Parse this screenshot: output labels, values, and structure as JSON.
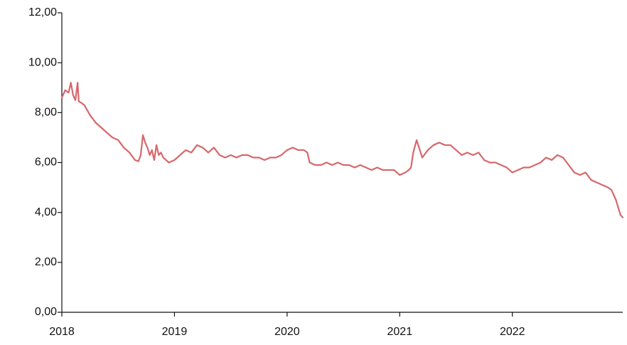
{
  "colors": {
    "series": "#d7676b",
    "axis": "#111111"
  },
  "chart_data": {
    "type": "line",
    "title": "",
    "xlabel": "",
    "ylabel": "",
    "xlim": [
      2018.0,
      2022.98
    ],
    "ylim": [
      0,
      12
    ],
    "grid": false,
    "x_ticks": [
      {
        "value": 2018,
        "label": "2018"
      },
      {
        "value": 2019,
        "label": "2019"
      },
      {
        "value": 2020,
        "label": "2020"
      },
      {
        "value": 2021,
        "label": "2021"
      },
      {
        "value": 2022,
        "label": "2022"
      }
    ],
    "y_ticks": [
      {
        "value": 0,
        "label": "0,00"
      },
      {
        "value": 2,
        "label": "2,00"
      },
      {
        "value": 4,
        "label": "4,00"
      },
      {
        "value": 6,
        "label": "6,00"
      },
      {
        "value": 8,
        "label": "8,00"
      },
      {
        "value": 10,
        "label": "10,00"
      },
      {
        "value": 12,
        "label": "12,00"
      }
    ],
    "series": [
      {
        "color": "#d7676b",
        "x": [
          2018.0,
          2018.03,
          2018.06,
          2018.08,
          2018.1,
          2018.12,
          2018.14,
          2018.15,
          2018.17,
          2018.2,
          2018.25,
          2018.3,
          2018.35,
          2018.4,
          2018.45,
          2018.5,
          2018.55,
          2018.6,
          2018.65,
          2018.68,
          2018.7,
          2018.72,
          2018.74,
          2018.76,
          2018.78,
          2018.8,
          2018.82,
          2018.84,
          2018.86,
          2018.88,
          2018.9,
          2018.95,
          2019.0,
          2019.05,
          2019.1,
          2019.15,
          2019.2,
          2019.25,
          2019.3,
          2019.35,
          2019.4,
          2019.45,
          2019.5,
          2019.55,
          2019.6,
          2019.65,
          2019.7,
          2019.75,
          2019.8,
          2019.85,
          2019.9,
          2019.95,
          2020.0,
          2020.05,
          2020.1,
          2020.15,
          2020.18,
          2020.2,
          2020.25,
          2020.3,
          2020.35,
          2020.4,
          2020.45,
          2020.5,
          2020.55,
          2020.6,
          2020.65,
          2020.7,
          2020.75,
          2020.8,
          2020.85,
          2020.9,
          2020.95,
          2021.0,
          2021.05,
          2021.08,
          2021.1,
          2021.12,
          2021.15,
          2021.2,
          2021.25,
          2021.3,
          2021.35,
          2021.4,
          2021.45,
          2021.5,
          2021.55,
          2021.6,
          2021.65,
          2021.7,
          2021.75,
          2021.8,
          2021.85,
          2021.9,
          2021.95,
          2022.0,
          2022.05,
          2022.1,
          2022.15,
          2022.2,
          2022.25,
          2022.3,
          2022.35,
          2022.4,
          2022.45,
          2022.5,
          2022.55,
          2022.6,
          2022.65,
          2022.7,
          2022.75,
          2022.8,
          2022.85,
          2022.88,
          2022.9,
          2022.92,
          2022.94,
          2022.96,
          2022.98
        ],
        "values": [
          8.6,
          8.9,
          8.8,
          9.2,
          8.7,
          8.5,
          9.2,
          8.45,
          8.4,
          8.3,
          7.9,
          7.6,
          7.4,
          7.2,
          7.0,
          6.9,
          6.6,
          6.4,
          6.1,
          6.05,
          6.3,
          7.1,
          6.8,
          6.6,
          6.3,
          6.5,
          6.1,
          6.7,
          6.3,
          6.4,
          6.2,
          6.0,
          6.1,
          6.3,
          6.5,
          6.4,
          6.7,
          6.6,
          6.4,
          6.6,
          6.3,
          6.2,
          6.3,
          6.2,
          6.3,
          6.3,
          6.2,
          6.2,
          6.1,
          6.2,
          6.2,
          6.3,
          6.5,
          6.6,
          6.5,
          6.5,
          6.4,
          6.0,
          5.9,
          5.9,
          6.0,
          5.9,
          6.0,
          5.9,
          5.9,
          5.8,
          5.9,
          5.8,
          5.7,
          5.8,
          5.7,
          5.7,
          5.7,
          5.5,
          5.6,
          5.7,
          5.8,
          6.4,
          6.9,
          6.2,
          6.5,
          6.7,
          6.8,
          6.7,
          6.7,
          6.5,
          6.3,
          6.4,
          6.3,
          6.4,
          6.1,
          6.0,
          6.0,
          5.9,
          5.8,
          5.6,
          5.7,
          5.8,
          5.8,
          5.9,
          6.0,
          6.2,
          6.1,
          6.3,
          6.2,
          5.9,
          5.6,
          5.5,
          5.6,
          5.3,
          5.2,
          5.1,
          5.0,
          4.9,
          4.7,
          4.5,
          4.2,
          3.9,
          3.8
        ]
      }
    ]
  }
}
